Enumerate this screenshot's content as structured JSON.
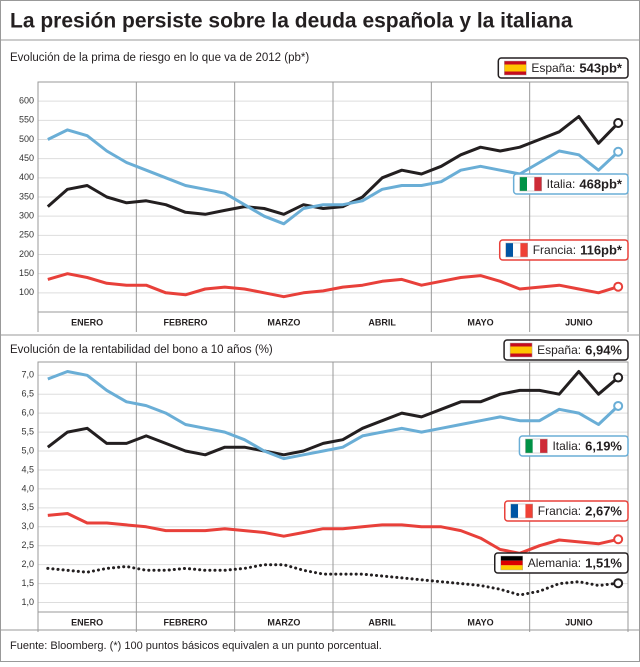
{
  "title": "La presión persiste sobre la deuda española y la italiana",
  "source": "Fuente: Bloomberg. (*) 100 puntos básicos equivalen a un punto porcentual.",
  "chart_data": [
    {
      "type": "line",
      "title": "Evolución de la prima de riesgo en lo que va de 2012 (pb*)",
      "categories": [
        null,
        null,
        "ENERO",
        null,
        null,
        null,
        null,
        "FEBRERO",
        null,
        null,
        null,
        null,
        "MARZO",
        null,
        null,
        null,
        null,
        "ABRIL",
        null,
        null,
        null,
        null,
        "MAYO",
        null,
        null,
        null,
        null,
        "JUNIO",
        null,
        null
      ],
      "ylim": [
        50,
        650
      ],
      "yticks": [
        100,
        150,
        200,
        250,
        300,
        350,
        400,
        450,
        500,
        550,
        600
      ],
      "grid": true,
      "series": [
        {
          "name": "España:",
          "color": "#231f20",
          "values": [
            325,
            370,
            380,
            350,
            335,
            340,
            330,
            310,
            305,
            315,
            325,
            320,
            305,
            330,
            320,
            325,
            350,
            400,
            420,
            410,
            430,
            460,
            480,
            470,
            480,
            500,
            520,
            560,
            490,
            543
          ],
          "value_labels": [
            null,
            null,
            null,
            null,
            null,
            null,
            null,
            null,
            null,
            null,
            null,
            null,
            null,
            null,
            null,
            null,
            null,
            null,
            null,
            null,
            null,
            null,
            null,
            null,
            null,
            null,
            null,
            null,
            null,
            "543pb*"
          ]
        },
        {
          "name": "Italia:",
          "color": "#6aaed6",
          "values": [
            500,
            525,
            510,
            470,
            440,
            420,
            400,
            380,
            370,
            360,
            330,
            300,
            280,
            320,
            330,
            330,
            340,
            370,
            380,
            380,
            390,
            420,
            430,
            420,
            410,
            440,
            470,
            460,
            420,
            468
          ],
          "value_labels": [
            null,
            null,
            null,
            null,
            null,
            null,
            null,
            null,
            null,
            null,
            null,
            null,
            null,
            null,
            null,
            null,
            null,
            null,
            null,
            null,
            null,
            null,
            null,
            null,
            null,
            null,
            null,
            null,
            null,
            "468pb*"
          ]
        },
        {
          "name": "Francia:",
          "color": "#e8403a",
          "values": [
            135,
            150,
            140,
            125,
            120,
            120,
            100,
            95,
            110,
            115,
            110,
            100,
            90,
            100,
            105,
            115,
            120,
            130,
            135,
            120,
            130,
            140,
            145,
            130,
            110,
            115,
            120,
            110,
            100,
            116
          ],
          "value_labels": [
            null,
            null,
            null,
            null,
            null,
            null,
            null,
            null,
            null,
            null,
            null,
            null,
            null,
            null,
            null,
            null,
            null,
            null,
            null,
            null,
            null,
            null,
            null,
            null,
            null,
            null,
            null,
            null,
            null,
            "116pb*"
          ]
        }
      ]
    },
    {
      "type": "line",
      "title": "Evolución de la rentabilidad del bono a 10 años (%)",
      "categories": [
        null,
        null,
        "ENERO",
        null,
        null,
        null,
        null,
        "FEBRERO",
        null,
        null,
        null,
        null,
        "MARZO",
        null,
        null,
        null,
        null,
        "ABRIL",
        null,
        null,
        null,
        null,
        "MAYO",
        null,
        null,
        null,
        null,
        "JUNIO",
        null,
        null
      ],
      "ylim": [
        0.75,
        7.35
      ],
      "yticks": [
        {
          "value": 1,
          "label": "1,0"
        },
        {
          "value": 1.5,
          "label": "1,5"
        },
        {
          "value": 2,
          "label": "2,0"
        },
        {
          "value": 2.5,
          "label": "2,5"
        },
        {
          "value": 3,
          "label": "3,0"
        },
        {
          "value": 3.5,
          "label": "3,5"
        },
        {
          "value": 4,
          "label": "4,0"
        },
        {
          "value": 4.5,
          "label": "4,5"
        },
        {
          "value": 5,
          "label": "5,0"
        },
        {
          "value": 5.5,
          "label": "5,5"
        },
        {
          "value": 6,
          "label": "6,0"
        },
        {
          "value": 6.5,
          "label": "6,5"
        },
        {
          "value": 7,
          "label": "7,0"
        }
      ],
      "grid": true,
      "series": [
        {
          "name": "España:",
          "color": "#231f20",
          "values": [
            5.1,
            5.5,
            5.6,
            5.2,
            5.2,
            5.4,
            5.2,
            5.0,
            4.9,
            5.1,
            5.1,
            5.0,
            4.9,
            5.0,
            5.2,
            5.3,
            5.6,
            5.8,
            6.0,
            5.9,
            6.1,
            6.3,
            6.3,
            6.5,
            6.6,
            6.6,
            6.5,
            7.1,
            6.5,
            6.94
          ],
          "value_labels": [
            null,
            null,
            null,
            null,
            null,
            null,
            null,
            null,
            null,
            null,
            null,
            null,
            null,
            null,
            null,
            null,
            null,
            null,
            null,
            null,
            null,
            null,
            null,
            null,
            null,
            null,
            null,
            null,
            null,
            "6,94%"
          ]
        },
        {
          "name": "Italia:",
          "color": "#6aaed6",
          "values": [
            6.9,
            7.1,
            7.0,
            6.6,
            6.3,
            6.2,
            6.0,
            5.7,
            5.6,
            5.5,
            5.3,
            5.0,
            4.8,
            4.9,
            5.0,
            5.1,
            5.4,
            5.5,
            5.6,
            5.5,
            5.6,
            5.7,
            5.8,
            5.9,
            5.8,
            5.8,
            6.1,
            6.0,
            5.7,
            6.19
          ],
          "value_labels": [
            null,
            null,
            null,
            null,
            null,
            null,
            null,
            null,
            null,
            null,
            null,
            null,
            null,
            null,
            null,
            null,
            null,
            null,
            null,
            null,
            null,
            null,
            null,
            null,
            null,
            null,
            null,
            null,
            null,
            "6,19%"
          ]
        },
        {
          "name": "Francia:",
          "color": "#e8403a",
          "values": [
            3.3,
            3.35,
            3.1,
            3.1,
            3.05,
            3.0,
            2.9,
            2.9,
            2.9,
            2.95,
            2.9,
            2.85,
            2.75,
            2.85,
            2.95,
            2.95,
            3.0,
            3.05,
            3.05,
            3.0,
            3.0,
            2.9,
            2.7,
            2.4,
            2.3,
            2.5,
            2.65,
            2.6,
            2.55,
            2.67
          ],
          "value_labels": [
            null,
            null,
            null,
            null,
            null,
            null,
            null,
            null,
            null,
            null,
            null,
            null,
            null,
            null,
            null,
            null,
            null,
            null,
            null,
            null,
            null,
            null,
            null,
            null,
            null,
            null,
            null,
            null,
            null,
            "2,67%"
          ]
        },
        {
          "name": "Alemania:",
          "color": "#231f20",
          "style": "dotted",
          "values": [
            1.9,
            1.85,
            1.8,
            1.9,
            1.95,
            1.85,
            1.85,
            1.9,
            1.85,
            1.85,
            1.9,
            2.0,
            2.0,
            1.85,
            1.75,
            1.75,
            1.75,
            1.7,
            1.65,
            1.6,
            1.55,
            1.5,
            1.45,
            1.35,
            1.2,
            1.3,
            1.5,
            1.55,
            1.45,
            1.51
          ],
          "value_labels": [
            null,
            null,
            null,
            null,
            null,
            null,
            null,
            null,
            null,
            null,
            null,
            null,
            null,
            null,
            null,
            null,
            null,
            null,
            null,
            null,
            null,
            null,
            null,
            null,
            null,
            null,
            null,
            null,
            null,
            "1,51%"
          ]
        }
      ]
    }
  ]
}
